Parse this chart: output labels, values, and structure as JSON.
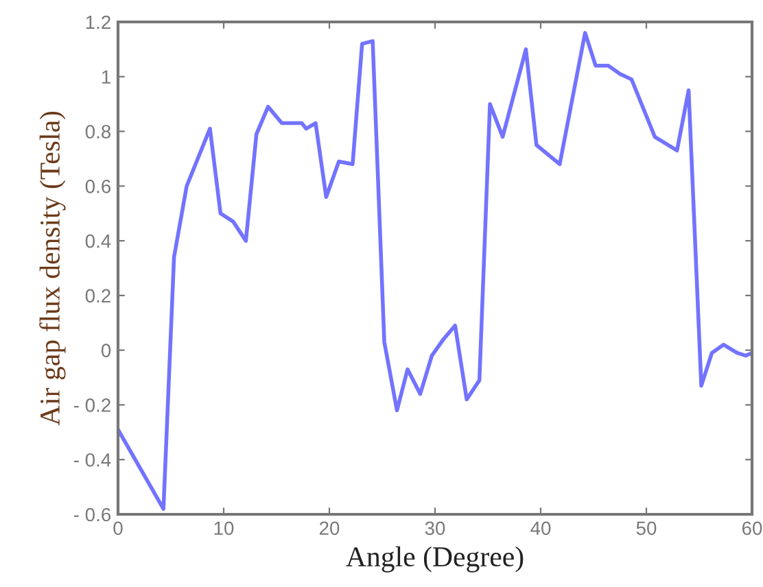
{
  "chart_data": {
    "type": "line",
    "xlabel": "Angle (Degree)",
    "ylabel": "Air gap flux density (Tesla)",
    "xlim": [
      0,
      60
    ],
    "ylim": [
      -0.6,
      1.2
    ],
    "xticks": [
      0,
      10,
      20,
      30,
      40,
      50,
      60
    ],
    "yticks": [
      {
        "value": -0.6,
        "label": "- 0.6"
      },
      {
        "value": -0.4,
        "label": "- 0.4"
      },
      {
        "value": -0.2,
        "label": "- 0.2"
      },
      0,
      0.2,
      0.4,
      0.6,
      0.8,
      1,
      1.2
    ],
    "grid": false,
    "legend": false,
    "line_style": "solid",
    "series": [
      {
        "color": "#7373ff",
        "x": [
          0,
          4.3,
          5.3,
          6.5,
          8.7,
          9.7,
          10.9,
          12.1,
          13.1,
          14.2,
          15.5,
          17.4,
          17.8,
          18.7,
          19.7,
          20.9,
          22.2,
          23.1,
          24.1,
          25.2,
          26.4,
          27.4,
          28.6,
          29.7,
          30.8,
          31.9,
          33.0,
          34.2,
          35.2,
          36.4,
          38.6,
          39.6,
          41.8,
          44.2,
          45.2,
          46.4,
          47.5,
          48.6,
          50.8,
          52.9,
          54.0,
          55.2,
          56.2,
          57.3,
          58.6,
          59.4,
          60
        ],
        "values": [
          -0.29,
          -0.58,
          0.34,
          0.6,
          0.81,
          0.5,
          0.47,
          0.4,
          0.79,
          0.89,
          0.83,
          0.83,
          0.81,
          0.83,
          0.56,
          0.69,
          0.68,
          1.12,
          1.13,
          0.03,
          -0.22,
          -0.07,
          -0.16,
          -0.02,
          0.04,
          0.09,
          -0.18,
          -0.11,
          0.9,
          0.78,
          1.1,
          0.75,
          0.68,
          1.16,
          1.04,
          1.04,
          1.01,
          0.99,
          0.78,
          0.73,
          0.95,
          -0.13,
          -0.01,
          0.02,
          -0.01,
          -0.02,
          -0.01
        ]
      }
    ]
  }
}
